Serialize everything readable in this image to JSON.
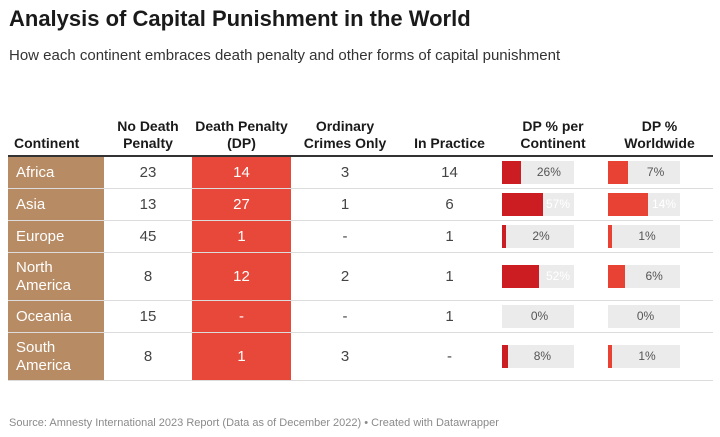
{
  "header": {
    "title": "Analysis of Capital Punishment in the World",
    "subtitle": "How each continent embraces death penalty and other forms of capital punishment"
  },
  "footer": {
    "source": "Source: Amnesty International 2023 Report (Data as of December 2022) • Created with Datawrapper"
  },
  "colors": {
    "continent_bg": "#b78b63",
    "dp_column_bg": "#e8483a",
    "bar_continent": "#cc1d23",
    "bar_worldwide": "#e84234",
    "bar_track": "#ebebeb"
  },
  "chart_data": {
    "type": "table",
    "title": "Analysis of Capital Punishment in the World",
    "subtitle": "How each continent embraces death penalty and other forms of capital punishment",
    "columns": [
      {
        "key": "continent",
        "label": "Continent"
      },
      {
        "key": "no_dp",
        "label": "No Death Penalty"
      },
      {
        "key": "dp",
        "label": "Death Penalty (DP)"
      },
      {
        "key": "ordinary",
        "label": "Ordinary Crimes Only"
      },
      {
        "key": "practice",
        "label": "In Practice"
      },
      {
        "key": "dp_pct_cont",
        "label": "DP % per Continent"
      },
      {
        "key": "dp_pct_world",
        "label": "DP % Worldwide"
      }
    ],
    "rows": [
      {
        "continent": "Africa",
        "no_dp": "23",
        "dp": "14",
        "ordinary": "3",
        "practice": "14",
        "dp_pct_cont": 26,
        "dp_pct_world": 7
      },
      {
        "continent": "Asia",
        "no_dp": "13",
        "dp": "27",
        "ordinary": "1",
        "practice": "6",
        "dp_pct_cont": 57,
        "dp_pct_world": 14
      },
      {
        "continent": "Europe",
        "no_dp": "45",
        "dp": "1",
        "ordinary": "-",
        "practice": "1",
        "dp_pct_cont": 2,
        "dp_pct_world": 1
      },
      {
        "continent": "North America",
        "no_dp": "8",
        "dp": "12",
        "ordinary": "2",
        "practice": "1",
        "dp_pct_cont": 52,
        "dp_pct_world": 6
      },
      {
        "continent": "Oceania",
        "no_dp": "15",
        "dp": "-",
        "ordinary": "-",
        "practice": "1",
        "dp_pct_cont": 0,
        "dp_pct_world": 0
      },
      {
        "continent": "South America",
        "no_dp": "8",
        "dp": "1",
        "ordinary": "3",
        "practice": "-",
        "dp_pct_cont": 8,
        "dp_pct_world": 1
      }
    ],
    "bar_range": {
      "dp_pct_cont": [
        0,
        100
      ],
      "dp_pct_world": [
        0,
        25
      ]
    }
  }
}
